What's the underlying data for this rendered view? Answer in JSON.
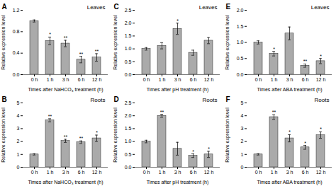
{
  "chart_data": [
    {
      "type": "bar",
      "title": "Leaves",
      "x_label": "Times after NaHCO₃ treatment (h)",
      "y_label": "Relative expression level",
      "categories": [
        "0 h",
        "1 h",
        "3 h",
        "6 h",
        "12 h"
      ],
      "values": [
        1.0,
        0.63,
        0.58,
        0.28,
        0.32
      ],
      "errors": [
        0.02,
        0.07,
        0.06,
        0.06,
        0.07
      ],
      "color": "#aaaaaa",
      "ylim": [
        0,
        1.2
      ],
      "yticks": [
        {
          "value": 0,
          "label": "0.0"
        },
        0.4,
        0.8,
        1.2
      ],
      "grid": false,
      "annotations": [
        {
          "text": "A"
        },
        {
          "x": "1 h",
          "text": "*"
        },
        {
          "x": "3 h",
          "text": "**"
        },
        {
          "x": "6 h",
          "text": "**"
        },
        {
          "x": "12 h",
          "text": "**"
        }
      ]
    },
    {
      "type": "bar",
      "title": "Leaves",
      "x_label": "Times after pH treatment (h)",
      "y_label": "Relative expression level",
      "categories": [
        "0 h",
        "1 h",
        "3 h",
        "6 h",
        "12 h"
      ],
      "values": [
        1.0,
        1.12,
        1.78,
        0.85,
        1.32
      ],
      "errors": [
        0.05,
        0.12,
        0.22,
        0.1,
        0.12
      ],
      "color": "#aaaaaa",
      "ylim": [
        0,
        2.5
      ],
      "yticks": [
        {
          "value": 0,
          "label": "0.0"
        },
        0.5,
        {
          "value": 1,
          "label": "1.0"
        },
        1.5,
        {
          "value": 2,
          "label": "2.0"
        },
        2.5
      ],
      "grid": false,
      "annotations": [
        {
          "text": "C"
        },
        {
          "x": "3 h",
          "text": "*"
        }
      ]
    },
    {
      "type": "bar",
      "title": "Leaves",
      "x_label": "Times after ABA treatment (h)",
      "y_label": "Relative expression level",
      "categories": [
        "0 h",
        "1 h",
        "3 h",
        "6 h",
        "12 h"
      ],
      "values": [
        1.0,
        0.65,
        1.28,
        0.28,
        0.42
      ],
      "errors": [
        0.05,
        0.07,
        0.2,
        0.05,
        0.08
      ],
      "color": "#aaaaaa",
      "ylim": [
        0,
        2.0
      ],
      "yticks": [
        {
          "value": 0,
          "label": "0.0"
        },
        0.5,
        {
          "value": 1,
          "label": "1.0"
        },
        1.5,
        {
          "value": 2,
          "label": "2.0"
        }
      ],
      "grid": false,
      "annotations": [
        {
          "text": "E"
        },
        {
          "x": "1 h",
          "text": "*"
        },
        {
          "x": "6 h",
          "text": "**"
        },
        {
          "x": "12 h",
          "text": "*"
        }
      ]
    },
    {
      "type": "bar",
      "title": "Roots",
      "x_label": "Times after NaHCO₃ treatment (h)",
      "y_label": "Relative expression level",
      "categories": [
        "0 h",
        "1 h",
        "3 h",
        "6 h",
        "12 h"
      ],
      "values": [
        1.0,
        3.65,
        2.05,
        1.95,
        2.25
      ],
      "errors": [
        0.05,
        0.12,
        0.12,
        0.1,
        0.25
      ],
      "color": "#aaaaaa",
      "ylim": [
        0,
        5
      ],
      "yticks": [
        0,
        1,
        2,
        3,
        4,
        5
      ],
      "grid": false,
      "annotations": [
        {
          "text": "B"
        },
        {
          "x": "1 h",
          "text": "**"
        },
        {
          "x": "3 h",
          "text": "**"
        },
        {
          "x": "6 h",
          "text": "**"
        },
        {
          "x": "12 h",
          "text": "*"
        }
      ]
    },
    {
      "type": "bar",
      "title": "Roots",
      "x_label": "Times after pH treatment (h)",
      "y_label": "Relative expression level",
      "categories": [
        "0 h",
        "1 h",
        "3 h",
        "6 h",
        "12 h"
      ],
      "values": [
        1.0,
        2.0,
        0.72,
        0.45,
        0.5
      ],
      "errors": [
        0.05,
        0.06,
        0.25,
        0.07,
        0.12
      ],
      "color": "#aaaaaa",
      "ylim": [
        0,
        2.5
      ],
      "yticks": [
        {
          "value": 0,
          "label": "0.0"
        },
        0.5,
        {
          "value": 1,
          "label": "1.0"
        },
        1.5,
        {
          "value": 2,
          "label": "2.0"
        },
        2.5
      ],
      "grid": false,
      "annotations": [
        {
          "text": "D"
        },
        {
          "x": "1 h",
          "text": "**"
        },
        {
          "x": "6 h",
          "text": "*"
        },
        {
          "x": "12 h",
          "text": "*"
        }
      ]
    },
    {
      "type": "bar",
      "title": "Roots",
      "x_label": "Times after ABA treatment (h)",
      "y_label": "Relative expression level",
      "categories": [
        "0 h",
        "1 h",
        "3 h",
        "6 h",
        "12 h"
      ],
      "values": [
        1.0,
        3.9,
        2.25,
        1.55,
        2.5
      ],
      "errors": [
        0.05,
        0.18,
        0.28,
        0.15,
        0.25
      ],
      "color": "#aaaaaa",
      "ylim": [
        0,
        5
      ],
      "yticks": [
        0,
        1,
        2,
        3,
        4,
        5
      ],
      "grid": false,
      "annotations": [
        {
          "text": "F"
        },
        {
          "x": "1 h",
          "text": "**"
        },
        {
          "x": "3 h",
          "text": "*"
        },
        {
          "x": "6 h",
          "text": "*"
        },
        {
          "x": "12 h",
          "text": "*"
        }
      ]
    }
  ]
}
